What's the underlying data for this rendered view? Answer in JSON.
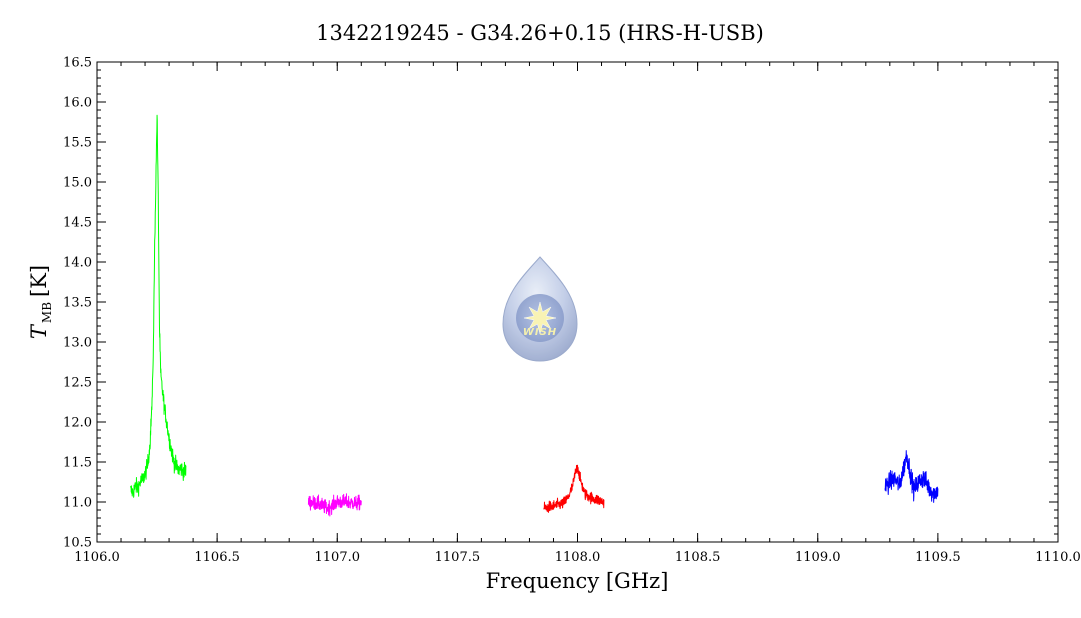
{
  "chart_data": {
    "type": "line",
    "title": "1342219245 - G34.26+0.15 (HRS-H-USB)",
    "xlabel": "Frequency [GHz]",
    "ylabel": {
      "symbol": "T",
      "subscript": "MB",
      "unit": "[K]"
    },
    "xlim": [
      1106.0,
      1110.0
    ],
    "ylim": [
      10.5,
      16.5
    ],
    "x_ticks": [
      {
        "value": 1106.0,
        "label": "1106.0"
      },
      {
        "value": 1106.5,
        "label": "1106.5"
      },
      {
        "value": 1107.0,
        "label": "1107.0"
      },
      {
        "value": 1107.5,
        "label": "1107.5"
      },
      {
        "value": 1108.0,
        "label": "1108.0"
      },
      {
        "value": 1108.5,
        "label": "1108.5"
      },
      {
        "value": 1109.0,
        "label": "1109.0"
      },
      {
        "value": 1109.5,
        "label": "1109.5"
      },
      {
        "value": 1110.0,
        "label": "1110.0"
      }
    ],
    "y_ticks": [
      {
        "value": 10.5,
        "label": "10.5"
      },
      {
        "value": 11.0,
        "label": "11.0"
      },
      {
        "value": 11.5,
        "label": "11.5"
      },
      {
        "value": 12.0,
        "label": "12.0"
      },
      {
        "value": 12.5,
        "label": "12.5"
      },
      {
        "value": 13.0,
        "label": "13.0"
      },
      {
        "value": 13.5,
        "label": "13.5"
      },
      {
        "value": 14.0,
        "label": "14.0"
      },
      {
        "value": 14.5,
        "label": "14.5"
      },
      {
        "value": 15.0,
        "label": "15.0"
      },
      {
        "value": 15.5,
        "label": "15.5"
      },
      {
        "value": 16.0,
        "label": "16.0"
      },
      {
        "value": 16.5,
        "label": "16.5"
      }
    ],
    "x_minor_step": 0.1,
    "y_minor_step": 0.1,
    "grid": false,
    "series": [
      {
        "color": "#00ff00",
        "x": [
          1106.14,
          1106.15,
          1106.16,
          1106.17,
          1106.18,
          1106.19,
          1106.2,
          1106.21,
          1106.22,
          1106.23,
          1106.235,
          1106.24,
          1106.245,
          1106.25,
          1106.255,
          1106.26,
          1106.265,
          1106.27,
          1106.28,
          1106.29,
          1106.3,
          1106.31,
          1106.32,
          1106.33,
          1106.34,
          1106.35,
          1106.36,
          1106.37
        ],
        "y": [
          11.15,
          11.12,
          11.2,
          11.18,
          11.25,
          11.28,
          11.35,
          11.45,
          11.7,
          12.3,
          13.0,
          14.2,
          15.0,
          15.85,
          14.8,
          13.2,
          12.6,
          12.45,
          12.2,
          12.0,
          11.8,
          11.65,
          11.5,
          11.45,
          11.4,
          11.42,
          11.38,
          11.4
        ],
        "noise": 0.1
      },
      {
        "color": "#ff00ff",
        "x": [
          1106.88,
          1106.92,
          1106.96,
          1107.0,
          1107.04,
          1107.08,
          1107.1
        ],
        "y": [
          11.0,
          10.98,
          10.92,
          11.0,
          11.0,
          10.98,
          11.0
        ],
        "noise": 0.09
      },
      {
        "color": "#ff0000",
        "x": [
          1107.86,
          1107.9,
          1107.94,
          1107.96,
          1107.98,
          1107.99,
          1108.0,
          1108.01,
          1108.03,
          1108.06,
          1108.09,
          1108.11
        ],
        "y": [
          10.92,
          10.95,
          10.98,
          11.05,
          11.2,
          11.35,
          11.45,
          11.3,
          11.1,
          11.05,
          11.02,
          11.0
        ],
        "noise": 0.07
      },
      {
        "color": "#0000ff",
        "x": [
          1109.28,
          1109.3,
          1109.32,
          1109.34,
          1109.36,
          1109.37,
          1109.38,
          1109.4,
          1109.42,
          1109.44,
          1109.46,
          1109.48,
          1109.5
        ],
        "y": [
          11.2,
          11.25,
          11.3,
          11.2,
          11.45,
          11.6,
          11.45,
          11.15,
          11.25,
          11.3,
          11.2,
          11.1,
          11.15
        ],
        "noise": 0.12
      }
    ]
  },
  "logo": {
    "text": "WISH"
  }
}
